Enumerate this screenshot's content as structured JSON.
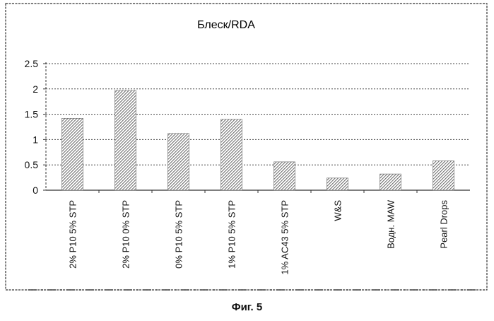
{
  "chart_data": {
    "type": "bar",
    "title": "Блеск/RDA",
    "categories": [
      "2% P10 5% STP",
      "2% P10 0% STP",
      "0% P10 5% STP",
      "1% P10 5% STP",
      "1% AC43 5% STP",
      "W&S",
      "Водн. MAW",
      "Pearl Drops"
    ],
    "values": [
      1.42,
      1.97,
      1.12,
      1.4,
      0.56,
      0.24,
      0.32,
      0.58
    ],
    "yticks": [
      "0",
      "0.5",
      "1",
      "1.5",
      "2",
      "2.5"
    ],
    "ylim": [
      0,
      2.5
    ],
    "xlabel": "",
    "ylabel": "",
    "grid": true,
    "bar_fill": "hatched",
    "colors": {
      "bar": "#555555",
      "grid": "#444444",
      "frame": "#333333"
    }
  },
  "caption": "Фиг. 5"
}
